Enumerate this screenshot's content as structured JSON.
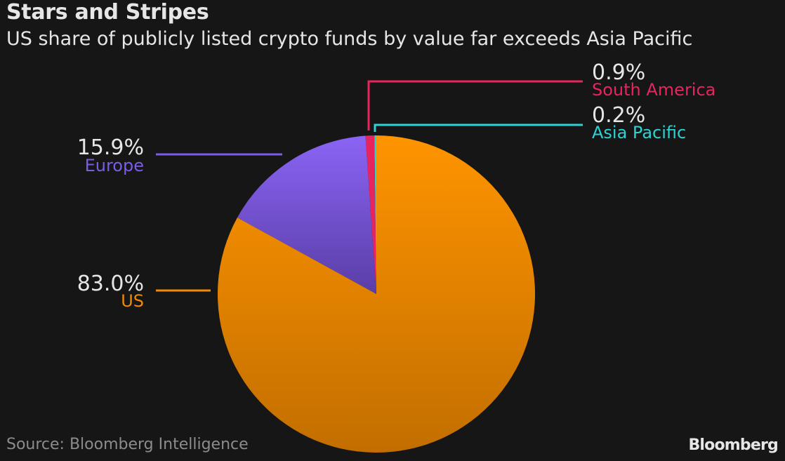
{
  "header": {
    "title": "Stars and Stripes",
    "subtitle": "US share of publicly listed crypto funds by value far exceeds Asia Pacific"
  },
  "footer": {
    "source": "Source: Bloomberg Intelligence",
    "logo": "Bloomberg"
  },
  "chart_data": {
    "type": "pie",
    "title": "Stars and Stripes",
    "subtitle": "US share of publicly listed crypto funds by value far exceeds Asia Pacific",
    "slices": [
      {
        "label": "US",
        "value": 83.0,
        "display": "83.0%",
        "color": "#f08a00"
      },
      {
        "label": "Europe",
        "value": 15.9,
        "display": "15.9%",
        "color": "#7a5ce8"
      },
      {
        "label": "South America",
        "value": 0.9,
        "display": "0.9%",
        "color": "#e8245e"
      },
      {
        "label": "Asia Pacific",
        "value": 0.2,
        "display": "0.2%",
        "color": "#2ed2d2"
      }
    ]
  }
}
